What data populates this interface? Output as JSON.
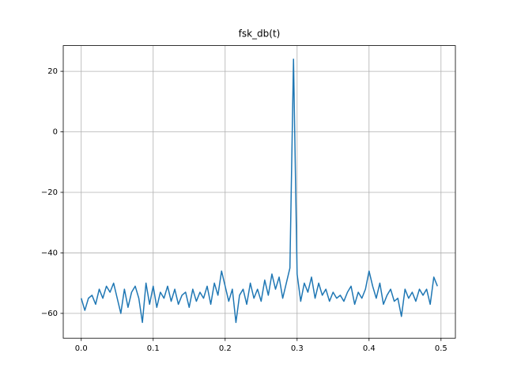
{
  "chart_data": {
    "type": "line",
    "title": "fsk_db(t)",
    "color": "#1f77b4",
    "grid": true,
    "xlim": [
      -0.025,
      0.52
    ],
    "ylim": [
      -68.2,
      28.5
    ],
    "xticks": [
      {
        "value": 0,
        "label": "0.0"
      },
      0.1,
      0.2,
      0.3,
      0.4,
      0.5
    ],
    "yticks": [
      {
        "value": -60,
        "label": "−60"
      },
      {
        "value": -40,
        "label": "−40"
      },
      {
        "value": -20,
        "label": "−20"
      },
      0,
      20
    ],
    "x": [
      0,
      0.005,
      0.01,
      0.015,
      0.02,
      0.025,
      0.03,
      0.035,
      0.04,
      0.045,
      0.05,
      0.055,
      0.06,
      0.065,
      0.07,
      0.075,
      0.08,
      0.085,
      0.09,
      0.095,
      0.1,
      0.105,
      0.11,
      0.115,
      0.12,
      0.125,
      0.13,
      0.135,
      0.14,
      0.145,
      0.15,
      0.155,
      0.16,
      0.165,
      0.17,
      0.175,
      0.18,
      0.185,
      0.19,
      0.195,
      0.2,
      0.205,
      0.21,
      0.215,
      0.22,
      0.225,
      0.23,
      0.235,
      0.24,
      0.245,
      0.25,
      0.255,
      0.26,
      0.265,
      0.27,
      0.275,
      0.28,
      0.285,
      0.29,
      0.295,
      0.3,
      0.305,
      0.31,
      0.315,
      0.32,
      0.325,
      0.33,
      0.335,
      0.34,
      0.345,
      0.35,
      0.355,
      0.36,
      0.365,
      0.37,
      0.375,
      0.38,
      0.385,
      0.39,
      0.395,
      0.4,
      0.405,
      0.41,
      0.415,
      0.42,
      0.425,
      0.43,
      0.435,
      0.44,
      0.445,
      0.45,
      0.455,
      0.46,
      0.465,
      0.47,
      0.475,
      0.48,
      0.485,
      0.49,
      0.495
    ],
    "values": [
      -55,
      -59,
      -55,
      -54,
      -57,
      -52,
      -55,
      -51,
      -53,
      -50,
      -55,
      -60,
      -52,
      -58,
      -53,
      -51,
      -55,
      -63,
      -50,
      -57,
      -51,
      -58,
      -53,
      -55,
      -51,
      -56,
      -52,
      -57,
      -54,
      -53,
      -58,
      -52,
      -56,
      -53,
      -55,
      -51,
      -57,
      -50,
      -54,
      -46,
      -51,
      -56,
      -52,
      -63,
      -54,
      -52,
      -57,
      -50,
      -55,
      -52,
      -56,
      -49,
      -54,
      -47,
      -52,
      -48,
      -55,
      -50,
      -45,
      24,
      -47,
      -56,
      -50,
      -53,
      -48,
      -55,
      -50,
      -54,
      -52,
      -56,
      -53,
      -55,
      -54,
      -56,
      -53,
      -51,
      -57,
      -53,
      -55,
      -52,
      -46,
      -51,
      -55,
      -50,
      -57,
      -54,
      -52,
      -56,
      -55,
      -61,
      -52,
      -55,
      -53,
      -56,
      -52,
      -54,
      -52,
      -57,
      -48,
      -51
    ]
  }
}
